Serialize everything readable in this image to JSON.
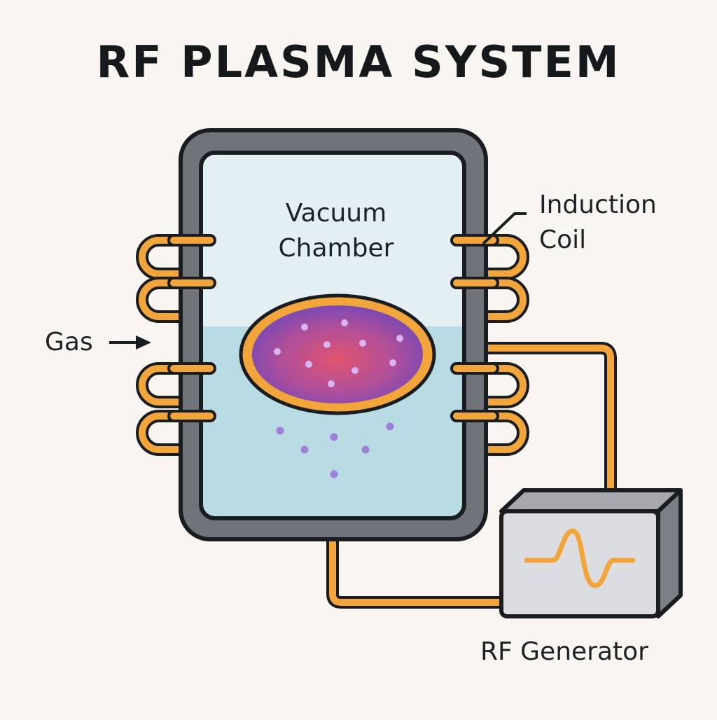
{
  "title": "RF PLASMA SYSTEM",
  "labels": {
    "chamber_line1": "Vacuum",
    "chamber_line2": "Chamber",
    "coil_line1": "Induction",
    "coil_line2": "Coil",
    "gas": "Gas",
    "generator": "RF Generator"
  },
  "colors": {
    "background": "#f9f6f1",
    "chamber_wall": "#6e7479",
    "outline": "#1a1d20",
    "chamber_upper": "#e3eff2",
    "chamber_lower": "#b9dbe3",
    "coil": "#f2a53b",
    "plasma_center": "#e0546e",
    "plasma_edge": "#6d48b8",
    "particle": "#a17fd9",
    "generator_face": "#dcdde0",
    "generator_top": "#a6a8ad",
    "generator_side": "#7c7f85"
  }
}
